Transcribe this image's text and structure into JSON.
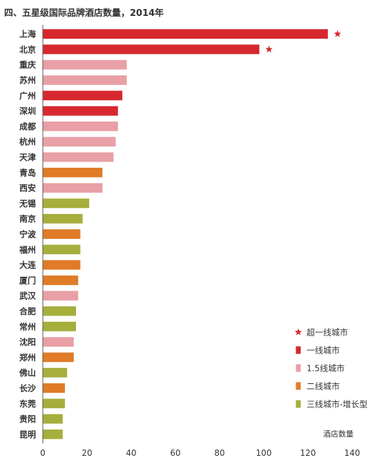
{
  "chart_data": {
    "type": "bar",
    "orientation": "horizontal",
    "title": "四、五星级国际品牌酒店数量，2014年",
    "xlabel": "酒店数量",
    "ylabel": "",
    "xlim": [
      0,
      140
    ],
    "xticks": [
      "0",
      "20",
      "40",
      "60",
      "80",
      "100",
      "120",
      "140"
    ],
    "grid": false,
    "legend_position": "bottom-right",
    "categories": [
      "上海",
      "北京",
      "重庆",
      "苏州",
      "广州",
      "深圳",
      "成都",
      "杭州",
      "天津",
      "青岛",
      "西安",
      "无锡",
      "南京",
      "宁波",
      "福州",
      "大连",
      "厦门",
      "武汉",
      "合肥",
      "常州",
      "沈阳",
      "郑州",
      "佛山",
      "长沙",
      "东莞",
      "贵阳",
      "昆明"
    ],
    "values": [
      129,
      98,
      38,
      38,
      36,
      34,
      34,
      33,
      32,
      27,
      27,
      21,
      18,
      17,
      17,
      17,
      16,
      16,
      15,
      15,
      14,
      14,
      11,
      10,
      10,
      9,
      9
    ],
    "tiers": [
      "super",
      "first",
      "t15",
      "t15",
      "first",
      "first",
      "t15",
      "t15",
      "t15",
      "second",
      "t15",
      "third",
      "third",
      "second",
      "third",
      "second",
      "second",
      "t15",
      "third",
      "third",
      "t15",
      "second",
      "third",
      "second",
      "third",
      "third",
      "third"
    ],
    "starred": [
      "上海",
      "北京"
    ],
    "legend": [
      {
        "key": "super",
        "label": "超一线城市",
        "marker": "star"
      },
      {
        "key": "first",
        "label": "一线城市",
        "marker": "square"
      },
      {
        "key": "t15",
        "label": "1.5线城市",
        "marker": "square"
      },
      {
        "key": "second",
        "label": "二线城市",
        "marker": "square"
      },
      {
        "key": "third",
        "label": "三线城市-增长型",
        "marker": "square"
      }
    ],
    "colors": {
      "super": "#d7282f",
      "first": "#d7282f",
      "t15": "#e8a0a6",
      "second": "#e07b28",
      "third": "#a6ae3c",
      "axis": "#555555",
      "text": "#333333"
    }
  }
}
